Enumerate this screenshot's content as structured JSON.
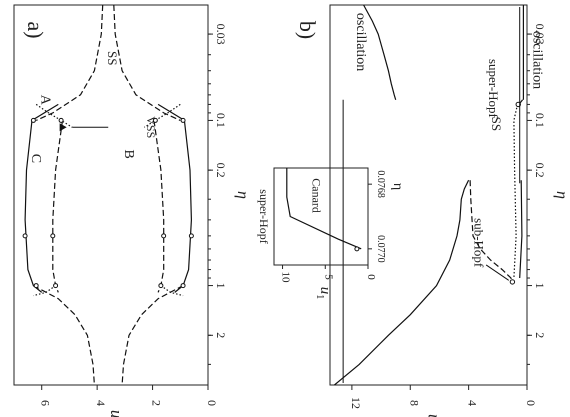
{
  "chart_data": [
    {
      "panel": "a)",
      "type": "line",
      "orientation": "rotated 90° clockwise",
      "x_axis": {
        "label": "η",
        "scale": "log",
        "range": [
          0.02,
          4
        ],
        "ticks": [
          0.03,
          0.1,
          0.2,
          1,
          2
        ],
        "tick_labels": [
          "0.03",
          "0.1",
          "0.2",
          "1",
          "2"
        ]
      },
      "y_axis": {
        "label": "u",
        "label_sub": "1,2",
        "range": [
          0,
          7
        ],
        "ticks": [
          0,
          2,
          4,
          6
        ],
        "tick_labels": [
          "0",
          "2",
          "4",
          "6"
        ]
      },
      "series": [
        {
          "style": "dashed",
          "x": [
            0.02,
            0.03,
            0.05,
            0.07,
            0.09,
            0.1
          ],
          "y": [
            3.8,
            3.85,
            4.1,
            4.6,
            5.6,
            6.2
          ]
        },
        {
          "style": "solid",
          "x": [
            0.08,
            0.1,
            0.2,
            0.4,
            0.8,
            1,
            1.1
          ],
          "y": [
            5.4,
            6.35,
            6.55,
            6.6,
            6.5,
            6.3,
            6.0
          ]
        },
        {
          "style": "dashed",
          "x": [
            0.1,
            0.2,
            0.4,
            0.8,
            1,
            1.1
          ],
          "y": [
            5.25,
            5.5,
            5.6,
            5.6,
            5.5,
            5.4
          ]
        },
        {
          "style": "dotted",
          "x": [
            0.08,
            0.09,
            0.1,
            0.11
          ],
          "y": [
            6.2,
            5.75,
            5.3,
            4.9
          ]
        },
        {
          "style": "dotted",
          "x": [
            1,
            1.1,
            1.15
          ],
          "y": [
            5.5,
            5.85,
            6.3
          ]
        },
        {
          "style": "dashed",
          "x": [
            1,
            1.2,
            1.5,
            2,
            3,
            4
          ],
          "y": [
            6.3,
            5.4,
            4.8,
            4.35,
            4.15,
            4.1
          ]
        },
        {
          "style": "dashed",
          "x": [
            0.02,
            0.03,
            0.05,
            0.07,
            0.09,
            0.1
          ],
          "y": [
            3.4,
            3.35,
            3.1,
            2.6,
            1.6,
            1.0
          ]
        },
        {
          "style": "solid",
          "x": [
            0.08,
            0.1,
            0.2,
            0.4,
            0.8,
            1,
            1.1
          ],
          "y": [
            1.8,
            0.85,
            0.65,
            0.6,
            0.7,
            0.9,
            1.2
          ]
        },
        {
          "style": "dashed",
          "x": [
            0.1,
            0.2,
            0.4,
            0.8,
            1,
            1.1
          ],
          "y": [
            1.95,
            1.7,
            1.6,
            1.6,
            1.7,
            1.8
          ]
        },
        {
          "style": "dotted",
          "x": [
            0.08,
            0.09,
            0.1,
            0.11
          ],
          "y": [
            1.0,
            1.45,
            1.9,
            2.3
          ]
        },
        {
          "style": "dotted",
          "x": [
            1,
            1.1,
            1.15
          ],
          "y": [
            1.7,
            1.35,
            0.9
          ]
        },
        {
          "style": "dashed",
          "x": [
            1,
            1.2,
            1.5,
            2,
            3,
            4
          ],
          "y": [
            0.9,
            1.8,
            2.4,
            2.85,
            3.05,
            3.1
          ]
        }
      ],
      "annotations": [
        "A",
        "B",
        "C",
        "SS",
        "VSS"
      ]
    },
    {
      "panel": "b)",
      "type": "line",
      "orientation": "rotated 90° clockwise",
      "x_axis": {
        "label": "η",
        "scale": "log",
        "range": [
          0.02,
          4
        ],
        "ticks": [
          0.03,
          0.1,
          0.2,
          1,
          2
        ],
        "tick_labels": [
          "0.03",
          "0.1",
          "0.2",
          "1",
          "2"
        ]
      },
      "y_axis": {
        "label": "u",
        "label_sub": "1",
        "range": [
          0,
          13.5
        ],
        "ticks": [
          0,
          4,
          8,
          12
        ],
        "tick_labels": [
          "0",
          "4",
          "8",
          "12"
        ]
      },
      "series": [
        {
          "style": "solid",
          "x": [
            0.02,
            0.025,
            0.03,
            0.04,
            0.05,
            0.06,
            0.07,
            0.075
          ],
          "y": [
            11.2,
            10.6,
            10.2,
            9.8,
            9.5,
            9.3,
            9.1,
            9.0
          ]
        },
        {
          "style": "solid",
          "x": [
            0.02,
            0.075
          ],
          "y": [
            0.25,
            0.25
          ]
        },
        {
          "style": "solid",
          "x": [
            0.075,
            0.08
          ],
          "y": [
            0.3,
            0.55
          ]
        },
        {
          "style": "solid",
          "x": [
            0.23,
            0.26,
            0.3,
            0.4,
            0.5,
            0.7,
            1,
            1.5,
            2,
            3,
            4
          ],
          "y": [
            4.0,
            4.3,
            4.5,
            4.6,
            4.8,
            5.3,
            6.2,
            8.0,
            9.5,
            11.5,
            13.2
          ]
        },
        {
          "style": "dashed",
          "x": [
            0.23,
            0.3,
            0.5,
            0.6,
            0.7,
            0.8,
            0.9,
            0.95
          ],
          "y": [
            3.9,
            3.85,
            3.7,
            3.2,
            2.5,
            1.7,
            1.1,
            1.0
          ]
        },
        {
          "style": "dotted",
          "x": [
            0.08,
            0.1,
            0.2,
            0.5,
            0.9
          ],
          "y": [
            0.65,
            0.9,
            0.85,
            0.75,
            0.9
          ]
        },
        {
          "style": "solid",
          "x": [
            0.23,
            0.5,
            0.9
          ],
          "y": [
            0.4,
            0.35,
            0.5
          ]
        }
      ],
      "annotations": [
        "oscillation",
        "oscillation",
        "sub-Hopf",
        "super-Hopf",
        "SS"
      ],
      "inset": {
        "type": "line",
        "x_axis": {
          "label": "η",
          "range": [
            0.07675,
            0.07705
          ],
          "ticks": [
            0.0768,
            0.077
          ],
          "tick_labels": [
            "0.0768",
            "0.0770"
          ]
        },
        "y_axis": {
          "label": "u",
          "label_sub": "1",
          "range": [
            0,
            11
          ],
          "ticks": [
            0,
            5,
            10
          ],
          "tick_labels": [
            "0",
            "5",
            "10"
          ]
        },
        "series": [
          {
            "style": "solid",
            "x": [
              0.07675,
              0.07684,
              0.0769,
              0.07697,
              0.077
            ],
            "y": [
              9.5,
              9.5,
              9.1,
              3.5,
              0.8
            ]
          }
        ],
        "annotations": [
          "Canard",
          "super-Hopf"
        ]
      }
    }
  ]
}
